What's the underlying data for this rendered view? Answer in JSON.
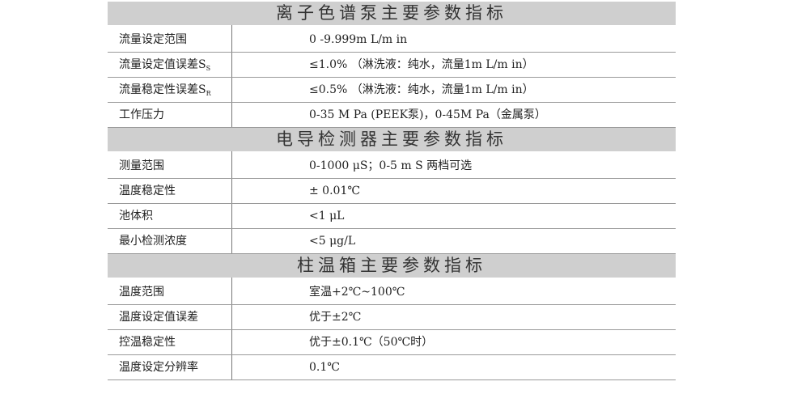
{
  "sections": [
    {
      "title": "离子色谱泵主要参数指标",
      "rows": [
        {
          "label": "流量设定范围",
          "sub": "",
          "value": "0 -9.999m L/m in"
        },
        {
          "label": "流量设定值误差S",
          "sub": "S",
          "value": "≤1.0% （淋洗液：纯水，流量1m L/m in）"
        },
        {
          "label": "流量稳定性误差S",
          "sub": "R",
          "value": "≤0.5% （淋洗液：纯水，流量1m L/m in）"
        },
        {
          "label": "工作压力",
          "sub": "",
          "value": "0-35 M Pa (PEEK泵)，0-45M Pa（金属泵）"
        }
      ]
    },
    {
      "title": "电导检测器主要参数指标",
      "rows": [
        {
          "label": "测量范围",
          "sub": "",
          "value": "0-1000 μS；0-5 m S 两档可选"
        },
        {
          "label": "温度稳定性",
          "sub": "",
          "value": "± 0.01℃"
        },
        {
          "label": "池体积",
          "sub": "",
          "value": "<1 μL"
        },
        {
          "label": "最小检测浓度",
          "sub": "",
          "value": "<5 μg/L"
        }
      ]
    },
    {
      "title": "柱温箱主要参数指标",
      "rows": [
        {
          "label": "温度范围",
          "sub": "",
          "value": "室温+2℃~100℃"
        },
        {
          "label": "温度设定值误差",
          "sub": "",
          "value": "优于±2℃"
        },
        {
          "label": "控温稳定性",
          "sub": "",
          "value": "优于±0.1℃（50℃时）"
        },
        {
          "label": "温度设定分辨率",
          "sub": "",
          "value": "0.1℃"
        }
      ]
    }
  ]
}
